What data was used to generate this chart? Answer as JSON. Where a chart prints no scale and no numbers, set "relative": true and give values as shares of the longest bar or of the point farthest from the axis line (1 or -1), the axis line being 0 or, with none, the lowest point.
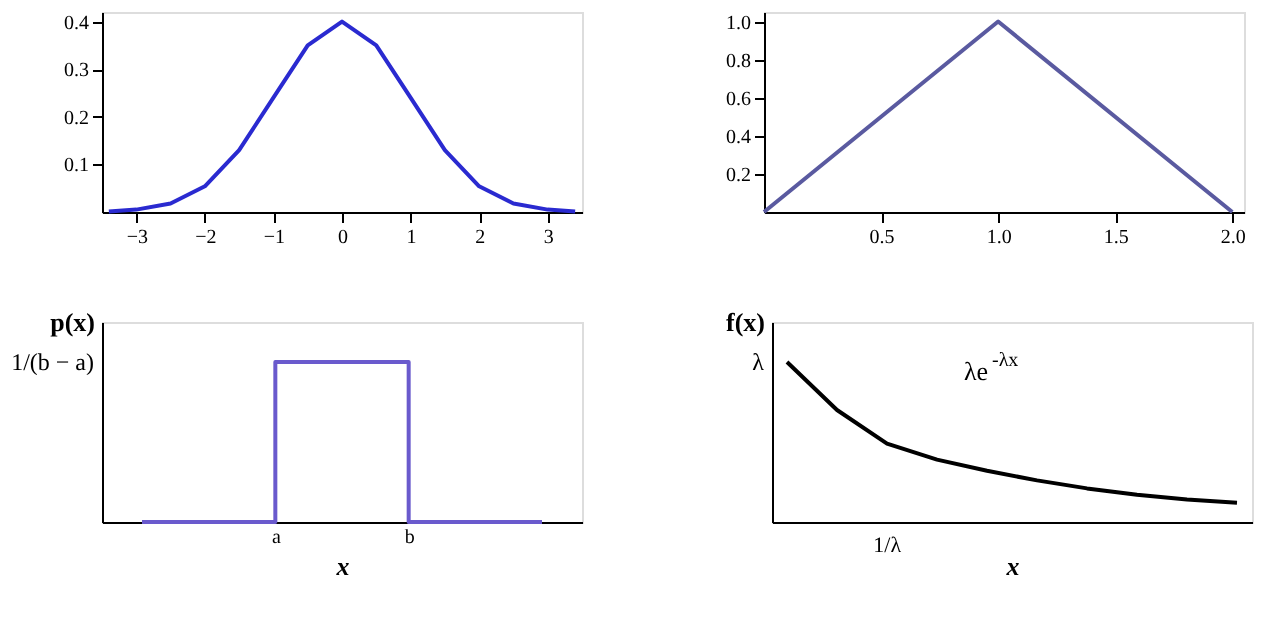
{
  "chart_data": [
    {
      "type": "line",
      "x": [
        -3.4,
        -3,
        -2.5,
        -2,
        -1.5,
        -1,
        -0.5,
        0,
        0.5,
        1,
        1.5,
        2,
        2.5,
        3,
        3.4
      ],
      "values": [
        0.001,
        0.005,
        0.018,
        0.054,
        0.13,
        0.24,
        0.35,
        0.4,
        0.35,
        0.24,
        0.13,
        0.054,
        0.018,
        0.005,
        0.001
      ],
      "color": "#2a2ad0",
      "xlim": [
        -3.5,
        3.5
      ],
      "ylim": [
        0,
        0.42
      ],
      "xticks": [
        -3,
        -2,
        -1,
        0,
        1,
        2,
        3
      ],
      "yticks": [
        0.1,
        0.2,
        0.3,
        0.4
      ],
      "grid": false,
      "marker": "none",
      "line_style": "solid"
    },
    {
      "type": "line",
      "x": [
        0,
        1,
        2
      ],
      "values": [
        0,
        1,
        0
      ],
      "color": "#5a5aa0",
      "xlim": [
        0,
        2.05
      ],
      "ylim": [
        0,
        1.05
      ],
      "xticks": [
        0.5,
        {
          "value": 1,
          "label": "1.0"
        },
        1.5,
        {
          "value": 2,
          "label": "2.0"
        }
      ],
      "yticks": [
        0.2,
        0.4,
        0.6,
        0.8,
        {
          "value": 1,
          "label": "1.0"
        }
      ],
      "grid": false,
      "marker": "none",
      "line_style": "solid"
    },
    {
      "type": "step",
      "categories": [
        null,
        "a",
        "b",
        null
      ],
      "values": [
        0,
        1,
        0,
        0
      ],
      "relative": true,
      "color": "#6a5acd",
      "xlabel": "x",
      "ylabel": "p(x)",
      "annotations": [
        "1/(b − a)"
      ],
      "grid": false,
      "marker": "none",
      "line_style": "solid"
    },
    {
      "type": "line",
      "categories": [
        null,
        null,
        null,
        null,
        null,
        null,
        null,
        null,
        null,
        null
      ],
      "values": [
        1,
        0.7,
        0.49,
        0.39,
        0.32,
        0.26,
        0.21,
        0.17,
        0.14,
        0.12
      ],
      "relative": true,
      "color": "#000000",
      "xlabel": "x",
      "ylabel": "f(x)",
      "annotations": [
        "λ",
        "λe$^{-λx}$",
        "1/λ"
      ],
      "grid": false,
      "marker": "none",
      "line_style": "solid"
    }
  ]
}
